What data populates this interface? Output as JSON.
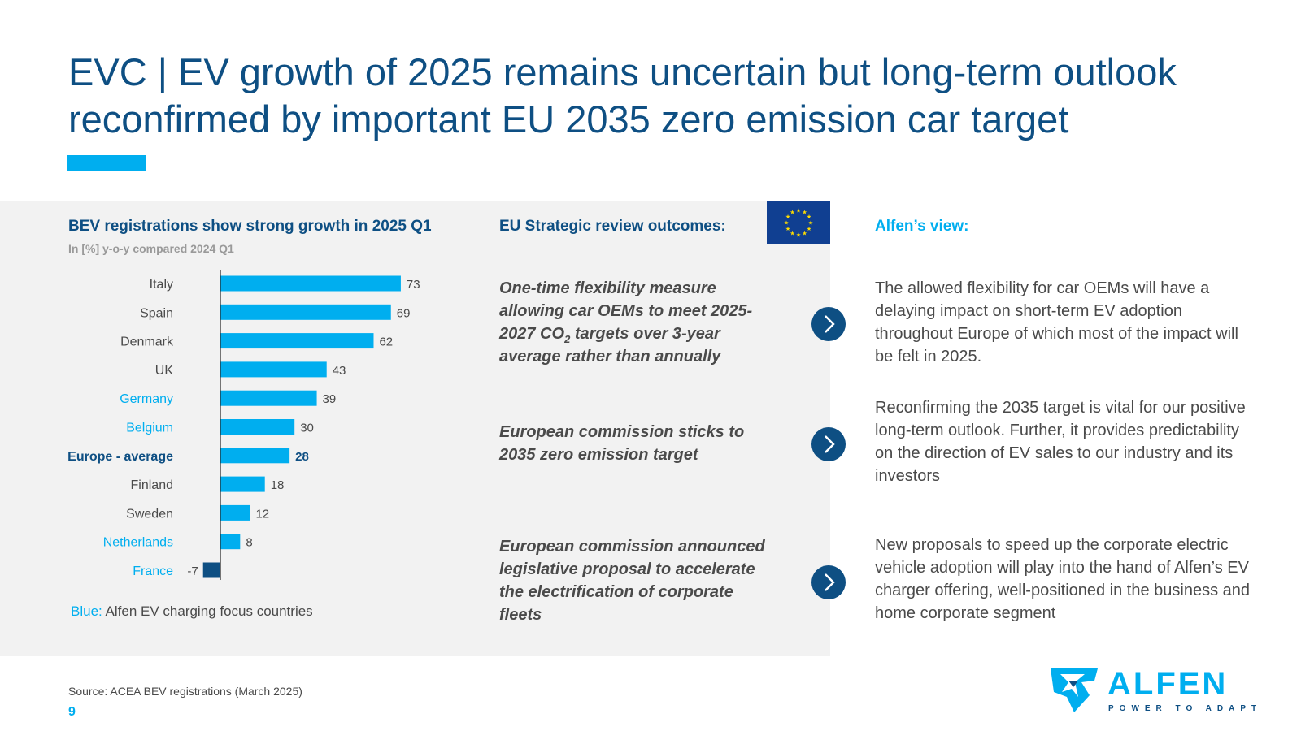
{
  "title": {
    "line1": "EVC | EV growth of 2025 remains uncertain but long-term outlook",
    "line2": "reconfirmed by important EU 2035 zero emission car target"
  },
  "chart_data": {
    "type": "bar",
    "orientation": "horizontal",
    "title": "BEV registrations show strong growth in 2025 Q1",
    "subtitle": "In [%] y-o-y compared 2024 Q1",
    "categories": [
      "Italy",
      "Spain",
      "Denmark",
      "UK",
      "Germany",
      "Belgium",
      "Europe - average",
      "Finland",
      "Sweden",
      "Netherlands",
      "France"
    ],
    "values": [
      73,
      69,
      62,
      43,
      39,
      30,
      28,
      18,
      12,
      8,
      -7
    ],
    "category_style": [
      "normal",
      "normal",
      "normal",
      "normal",
      "focus",
      "focus",
      "average",
      "normal",
      "normal",
      "focus",
      "focus"
    ],
    "unit": "%",
    "xlim": [
      -7,
      73
    ],
    "colors": {
      "positive": "#00aeef",
      "negative": "#0e4f83",
      "focus_label": "#00aeef",
      "average_label": "#0e4f83",
      "normal_label": "#4a4a4a"
    },
    "legend": {
      "key": "Blue:",
      "text": " Alfen EV charging focus countries"
    }
  },
  "eu": {
    "title": "EU Strategic review outcomes:",
    "flag_icon": "eu-flag-icon",
    "outcomes": {
      "o1_text": "One-time flexibility measure allowing car OEMs to meet 2025-2027 CO",
      "o1_sub": "2",
      "o1_tail": " targets over 3-year average rather than annually",
      "o2": "European commission sticks to 2035 zero emission target",
      "o3": "European commission announced legislative proposal to accelerate the electrification of corporate fleets"
    }
  },
  "alfen": {
    "title": "Alfen’s view:",
    "views": [
      "The allowed flexibility for car OEMs will have a delaying impact on short-term EV adoption throughout Europe of which most of the impact will be felt in 2025.",
      "Reconfirming the 2035 target is vital for our positive long-term outlook. Further, it provides predictability on the direction of EV sales to our industry and its investors",
      "New proposals to speed up the corporate electric vehicle adoption will play into the hand of Alfen’s EV charger offering, well-positioned in the business and home corporate segment"
    ]
  },
  "footer": {
    "source": "Source: ACEA BEV registrations (March 2025)",
    "page": "9"
  },
  "logo": {
    "word": "ALFEN",
    "tagline": "POWER TO ADAPT"
  },
  "icons": {
    "arrow": "chevron-right-icon",
    "logo_mark": "alfen-star-icon"
  }
}
